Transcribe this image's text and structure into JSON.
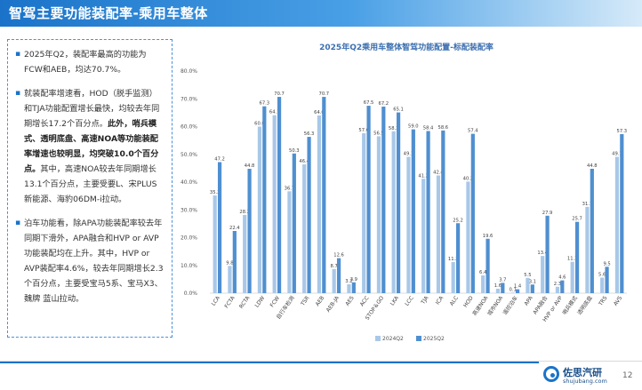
{
  "header": {
    "title": "智驾主要功能装配率-乘用车整体"
  },
  "left_panel": {
    "p1": {
      "t1": "2025年Q2，装配率最高的功能为FCW和AEB，均达70.7%。"
    },
    "p2": {
      "t1": "就装配率增速看，HOD（脱手监测）和TJA功能配置增长最快，均较去年同期增长17.2个百分点。",
      "t2": "此外，哨兵模式、透明底盘、高速NOA等功能装配率增速也较明显，均突破10.0个百分点。",
      "t3": "其中，高速NOA较去年同期增长13.1个百分点，主要受要L、宋PLUS新能源、海豹06DM-i拉动。"
    },
    "p3": {
      "t1": "泊车功能看，除APA功能装配率较去年同期下滑外，APA融合和HVP or AVP功能装配均在上升。其中，HVP or AVP装配率4.6%，较去年同期增长2.3个百分点，主要受宝马5系、宝马X3、魏牌 蓝山拉动。"
    }
  },
  "footer": {
    "logo_cn": "佐思汽研",
    "logo_en": "shujubang.com",
    "page": "12"
  },
  "colors": {
    "accent": "#1a73c9",
    "series_2024": "#a9c8e8",
    "series_2025": "#4f8fd0"
  },
  "chart_data": {
    "type": "bar",
    "title": "2025年Q2乘用车整体智驾功能配置-标配装配率",
    "xlabel": "",
    "ylabel": "",
    "ylim": [
      0,
      80
    ],
    "yticks": [
      "0.0%",
      "10.0%",
      "20.0%",
      "30.0%",
      "40.0%",
      "50.0%",
      "60.0%",
      "70.0%",
      "80.0%"
    ],
    "legend": "bottom",
    "grid": false,
    "categories": [
      "LCA",
      "FCTA",
      "RCTA",
      "LDW",
      "FCW",
      "自行车检测",
      "TSR",
      "AEB",
      "AEB-JA",
      "AES",
      "ACC",
      "STOP＆GO",
      "LKA",
      "LCC",
      "TJA",
      "ICA",
      "ALC",
      "HOD",
      "高速NOA",
      "城市NOA",
      "遥控泊车",
      "APA",
      "APA融合",
      "HVP or AVP",
      "哨兵模式",
      "透明底盘",
      "TRS",
      "AVS"
    ],
    "series": [
      {
        "name": "2024Q2",
        "values": [
          35.2,
          9.8,
          28.2,
          60.0,
          64.1,
          36.7,
          46.4,
          64.0,
          8.7,
          3.2,
          57.6,
          56.5,
          58.3,
          49.1,
          41.2,
          42.4,
          11.2,
          40.2,
          6.4,
          1.6,
          0.1,
          5.5,
          13.4,
          2.3,
          11.3,
          31.1,
          5.6,
          49.1
        ]
      },
      {
        "name": "2025Q2",
        "values": [
          47.2,
          22.4,
          44.8,
          67.3,
          70.7,
          50.3,
          56.3,
          70.7,
          12.6,
          3.9,
          67.5,
          67.2,
          65.1,
          59.0,
          58.4,
          58.6,
          25.2,
          57.4,
          19.6,
          3.7,
          1.4,
          3.1,
          27.9,
          4.6,
          25.7,
          44.8,
          9.5,
          57.3
        ]
      }
    ],
    "data_labels": {
      "2024Q2": [
        "35.2",
        "9.8",
        "28.2",
        "60.0",
        "64.1",
        "36.7",
        "46.4",
        "64.0",
        "8.7",
        "3.2",
        "57.6",
        "56.5",
        "58.3",
        "49.1",
        "41.2",
        "42.4",
        "11.2",
        "40.2",
        "6.4",
        "1.6",
        "0.1",
        "5.5",
        "13.4",
        "2.3",
        "11.3",
        "31.1",
        "5.6",
        "49.1"
      ],
      "2025Q2": [
        "47.2",
        "22.4",
        "44.8",
        "67.3",
        "70.7",
        "50.3",
        "56.3",
        "70.7",
        "12.6",
        "3.9",
        "67.5",
        "67.2",
        "65.1",
        "59.0",
        "58.4",
        "58.6",
        "25.2",
        "57.4",
        "19.6",
        "3.7",
        "1.4",
        "3.1",
        "27.9",
        "4.6",
        "25.7",
        "44.8",
        "9.5",
        "57.3"
      ]
    }
  }
}
